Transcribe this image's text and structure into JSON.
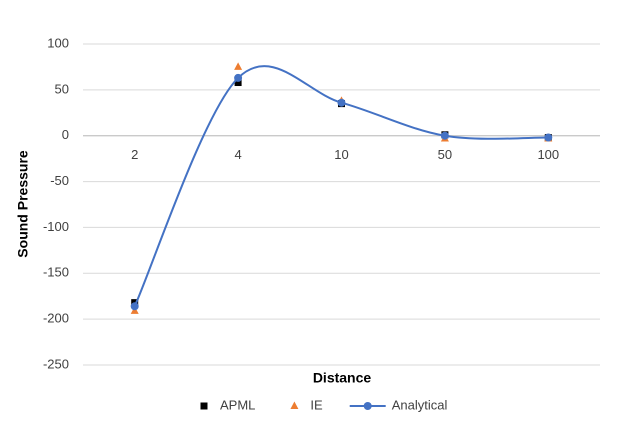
{
  "chart_data": {
    "type": "line",
    "x_label": "Distance",
    "y_label": "Sound Pressure",
    "categories": [
      "2",
      "4",
      "10",
      "50",
      "100"
    ],
    "series": [
      {
        "name": "APML",
        "color": "#000000",
        "marker": "square",
        "line": false,
        "values": [
          -182,
          58,
          35,
          1,
          -2
        ]
      },
      {
        "name": "IE",
        "color": "#ed7d31",
        "marker": "triangle",
        "line": false,
        "values": [
          -191,
          75,
          38,
          -3,
          -3
        ]
      },
      {
        "name": "Analytical",
        "color": "#4472c4",
        "marker": "circle",
        "line": true,
        "values": [
          -186,
          63,
          36,
          0,
          -2
        ]
      }
    ],
    "ylim": [
      -250,
      100
    ],
    "yticks": [
      -250,
      -200,
      -150,
      -100,
      -50,
      0,
      50,
      100
    ],
    "grid": true,
    "legend": "bottom"
  }
}
